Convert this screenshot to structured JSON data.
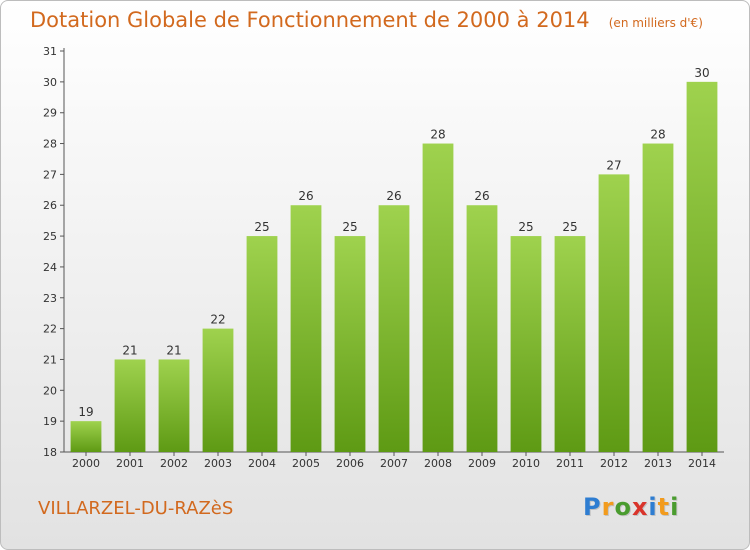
{
  "header": {
    "title": "Dotation Globale de Fonctionnement de 2000 à 2014",
    "subtitle": "(en milliers d'€)"
  },
  "footer": {
    "commune": "VILLARZEL-DU-RAZèS",
    "logo": [
      "P",
      "r",
      "o",
      "x",
      "i",
      "t",
      "i"
    ]
  },
  "colors": {
    "accent": "#d2691e",
    "bar_top": "#9fd24e",
    "bar_bottom": "#5e9a14",
    "logo": [
      "#2e7dd1",
      "#f29b1d",
      "#4a9c2f",
      "#d9342b",
      "#2e7dd1",
      "#f29b1d",
      "#4a9c2f"
    ]
  },
  "chart_data": {
    "type": "bar",
    "categories": [
      "2000",
      "2001",
      "2002",
      "2003",
      "2004",
      "2005",
      "2006",
      "2007",
      "2008",
      "2009",
      "2010",
      "2011",
      "2012",
      "2013",
      "2014"
    ],
    "values": [
      19,
      21,
      21,
      22,
      25,
      26,
      25,
      26,
      28,
      26,
      25,
      25,
      27,
      28,
      30
    ],
    "value_labels": [
      "19",
      "21",
      "21",
      "22",
      "25",
      "26",
      "25",
      "26",
      "28",
      "26",
      "25",
      "25",
      "27",
      "28",
      "30"
    ],
    "yticks": [
      "18",
      "19",
      "20",
      "21",
      "22",
      "23",
      "24",
      "25",
      "26",
      "27",
      "28",
      "29",
      "30",
      "31"
    ],
    "ylim": [
      18,
      31
    ],
    "grid": false,
    "legend": "none"
  }
}
